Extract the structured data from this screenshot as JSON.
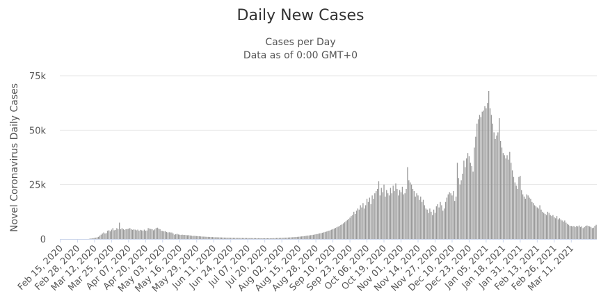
{
  "chart_data": {
    "type": "bar",
    "title": "Daily New Cases",
    "subtitle": [
      "Cases per Day",
      "Data as of 0:00 GMT+0"
    ],
    "ylabel": "Novel Coronavirus Daily Cases",
    "xlabel": "",
    "ylim": [
      0,
      75000
    ],
    "yticks": [
      0,
      25000,
      50000,
      75000
    ],
    "ytick_labels": [
      "0",
      "25k",
      "50k",
      "75k"
    ],
    "grid": true,
    "legend": "none",
    "bar_color": "#999999",
    "x_start": "2020-02-15",
    "x_end": "2021-03-21",
    "xtick_labels": [
      "Feb 15, 2020",
      "Feb 28, 2020",
      "Mar 12, 2020",
      "Mar 25, 2020",
      "Apr 07, 2020",
      "Apr 20, 2020",
      "May 03, 2020",
      "May 16, 2020",
      "May 29, 2020",
      "Jun 11, 2020",
      "Jun 24, 2020",
      "Jul 07, 2020",
      "Jul 20, 2020",
      "Aug 02, 2020",
      "Aug 15, 2020",
      "Aug 28, 2020",
      "Sep 10, 2020",
      "Sep 23, 2020",
      "Oct 06, 2020",
      "Oct 19, 2020",
      "Nov 01, 2020",
      "Nov 14, 2020",
      "Nov 27, 2020",
      "Dec 10, 2020",
      "Dec 23, 2020",
      "Jan 05, 2021",
      "Jan 18, 2021",
      "Jan 31, 2021",
      "Feb 13, 2021",
      "Feb 26, 2021",
      "Mar 11, 2021"
    ],
    "series": [
      {
        "values": [
          0,
          0,
          0,
          0,
          0,
          0,
          0,
          0,
          0,
          0,
          0,
          0,
          0,
          0,
          0,
          0,
          0,
          0,
          0,
          0,
          0,
          0,
          100,
          200,
          300,
          400,
          500,
          600,
          800,
          1000,
          1500,
          2000,
          2500,
          3000,
          2500,
          2700,
          3800,
          4000,
          3500,
          4300,
          5000,
          4000,
          4200,
          5000,
          4500,
          7500,
          4500,
          5000,
          4500,
          4200,
          4500,
          4600,
          4700,
          5000,
          4500,
          4200,
          4400,
          4300,
          4000,
          4300,
          3800,
          4200,
          4000,
          3800,
          4300,
          3800,
          3900,
          5000,
          4800,
          4600,
          4500,
          4000,
          4400,
          5000,
          5200,
          4800,
          4500,
          3800,
          3700,
          3500,
          3600,
          3200,
          3000,
          3100,
          3000,
          3000,
          2500,
          2000,
          2200,
          2400,
          2100,
          2000,
          1900,
          2000,
          1900,
          1900,
          1800,
          1700,
          1800,
          1600,
          1500,
          1400,
          1450,
          1400,
          1350,
          1300,
          1250,
          1200,
          1150,
          1100,
          1100,
          1050,
          1000,
          1000,
          950,
          900,
          900,
          850,
          800,
          800,
          780,
          750,
          730,
          700,
          680,
          650,
          630,
          600,
          600,
          580,
          560,
          540,
          520,
          510,
          500,
          500,
          490,
          480,
          470,
          460,
          450,
          450,
          440,
          430,
          420,
          420,
          410,
          400,
          400,
          390,
          380,
          380,
          370,
          360,
          350,
          350,
          340,
          340,
          340,
          350,
          360,
          370,
          380,
          400,
          420,
          440,
          460,
          480,
          500,
          520,
          550,
          580,
          600,
          640,
          680,
          720,
          760,
          800,
          850,
          900,
          950,
          1000,
          1060,
          1120,
          1180,
          1250,
          1320,
          1400,
          1480,
          1560,
          1650,
          1750,
          1850,
          1950,
          2060,
          2180,
          2300,
          2430,
          2570,
          2720,
          2880,
          3050,
          3230,
          3420,
          3620,
          3830,
          4050,
          4290,
          4540,
          4800,
          5080,
          5370,
          5680,
          6000,
          6400,
          6800,
          7200,
          7700,
          8200,
          8700,
          9200,
          9800,
          10500,
          11000,
          12500,
          11500,
          13000,
          14000,
          13500,
          15500,
          14500,
          16500,
          14000,
          15500,
          18500,
          17000,
          19000,
          16000,
          20000,
          18500,
          21000,
          22000,
          23000,
          26500,
          20000,
          23500,
          21500,
          25000,
          19500,
          22500,
          21000,
          20000,
          23500,
          21000,
          24500,
          22000,
          25500,
          23000,
          20000,
          22500,
          21500,
          24000,
          20500,
          21000,
          23000,
          33000,
          27000,
          26000,
          25000,
          23000,
          22000,
          19500,
          21000,
          20000,
          18000,
          19500,
          17000,
          18000,
          15500,
          14000,
          13500,
          12000,
          14000,
          12500,
          11000,
          13500,
          12000,
          15000,
          16000,
          14500,
          17000,
          15500,
          13000,
          14000,
          17000,
          19000,
          20500,
          21500,
          21000,
          20000,
          22000,
          17500,
          19500,
          35000,
          28000,
          25000,
          27000,
          30000,
          36000,
          33000,
          37000,
          39500,
          38000,
          35000,
          33500,
          31000,
          42000,
          47000,
          53000,
          55000,
          57000,
          56000,
          58500,
          59000,
          61000,
          60000,
          62500,
          68000,
          60000,
          57000,
          53000,
          49000,
          46000,
          47500,
          49000,
          55500,
          45000,
          42000,
          39500,
          38500,
          37000,
          38500,
          36500,
          40000,
          35000,
          31500,
          28500,
          26000,
          24500,
          23000,
          28500,
          29000,
          22500,
          20500,
          19500,
          18500,
          20500,
          20000,
          19000,
          18500,
          17000,
          16500,
          15500,
          15000,
          14500,
          14000,
          15500,
          13500,
          12500,
          12000,
          11500,
          11000,
          12500,
          12000,
          11000,
          10500,
          11000,
          10000,
          9500,
          10500,
          9000,
          9500,
          9000,
          8500,
          8000,
          8500,
          7500,
          7000,
          6500,
          6000,
          6000,
          5800,
          6000,
          5500,
          6000,
          5800,
          6200,
          5500,
          5800,
          5000,
          5500,
          6000,
          6200,
          6000,
          5800,
          5500,
          5000,
          5200,
          6000,
          6500
        ]
      }
    ]
  }
}
